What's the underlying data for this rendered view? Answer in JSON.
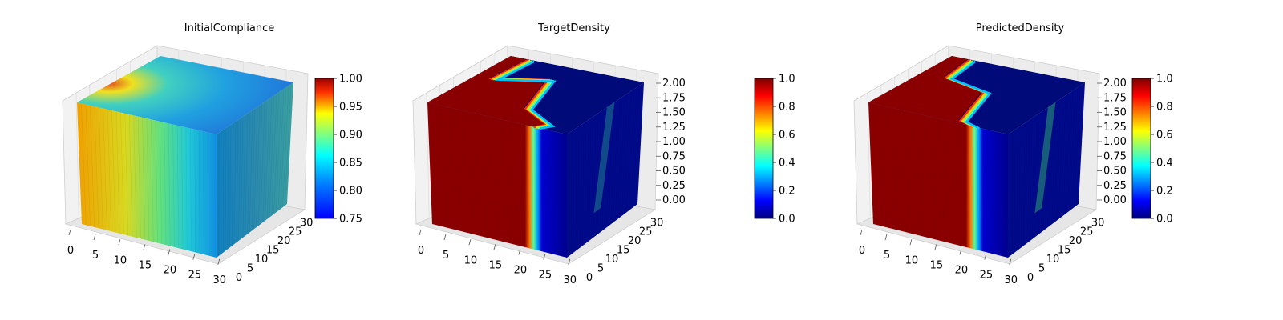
{
  "figure": {
    "background": "#ffffff"
  },
  "chart_data": [
    {
      "type": "heatmap",
      "subtype": "voxel-3d",
      "title": "InitialCompliance",
      "x_ticks": [
        "0",
        "5",
        "10",
        "15",
        "20",
        "25",
        "30"
      ],
      "y_ticks": [
        "0",
        "5",
        "10",
        "15",
        "20",
        "25",
        "30"
      ],
      "z_ticks": [],
      "colorbar": {
        "colormap": "jet",
        "min": 0.75,
        "max": 1.0,
        "ticks": [
          "0.75",
          "0.80",
          "0.85",
          "0.90",
          "0.95",
          "1.00"
        ]
      }
    },
    {
      "type": "heatmap",
      "subtype": "voxel-3d",
      "title": "TargetDensity",
      "x_ticks": [
        "0",
        "5",
        "10",
        "15",
        "20",
        "25",
        "30"
      ],
      "y_ticks": [
        "0",
        "5",
        "10",
        "15",
        "20",
        "25",
        "30"
      ],
      "z_ticks": [
        "0.00",
        "0.25",
        "0.50",
        "0.75",
        "1.00",
        "1.25",
        "1.50",
        "1.75",
        "2.00"
      ],
      "colorbar": {
        "colormap": "jet",
        "min": 0.0,
        "max": 1.0,
        "ticks": [
          "0.0",
          "0.2",
          "0.4",
          "0.6",
          "0.8",
          "1.0"
        ]
      }
    },
    {
      "type": "heatmap",
      "subtype": "voxel-3d",
      "title": "PredictedDensity",
      "x_ticks": [
        "0",
        "5",
        "10",
        "15",
        "20",
        "25",
        "30"
      ],
      "y_ticks": [
        "0",
        "5",
        "10",
        "15",
        "20",
        "25",
        "30"
      ],
      "z_ticks": [
        "0.00",
        "0.25",
        "0.50",
        "0.75",
        "1.00",
        "1.25",
        "1.50",
        "1.75",
        "2.00"
      ],
      "colorbar": {
        "colormap": "jet",
        "min": 0.0,
        "max": 1.0,
        "ticks": [
          "0.0",
          "0.2",
          "0.4",
          "0.6",
          "0.8",
          "1.0"
        ]
      }
    }
  ]
}
